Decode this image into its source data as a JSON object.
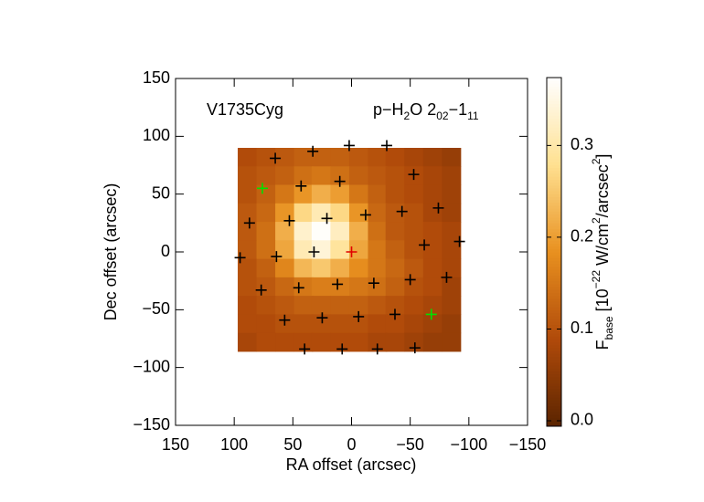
{
  "chart_data": {
    "type": "heatmap",
    "source_label": "V1735Cyg",
    "line_label": [
      {
        "t": "p−H"
      },
      {
        "t": "2",
        "s": "sub"
      },
      {
        "t": "O 2"
      },
      {
        "t": "02",
        "s": "sub"
      },
      {
        "t": "−1"
      },
      {
        "t": "11",
        "s": "sub"
      }
    ],
    "xlabel": "RA offset (arcsec)",
    "ylabel": "Dec offset (arcsec)",
    "xlim": [
      150,
      -150
    ],
    "ylim": [
      -150,
      150
    ],
    "xticks": [
      150,
      100,
      50,
      0,
      {
        "value": -50,
        "label": "−50"
      },
      {
        "value": -100,
        "label": "−100"
      },
      {
        "value": -150,
        "label": "−150"
      }
    ],
    "yticks": [
      {
        "value": -150,
        "label": "−150"
      },
      {
        "value": -100,
        "label": "−100"
      },
      {
        "value": -50,
        "label": "−50"
      },
      0,
      50,
      100,
      150
    ],
    "x": [
      89,
      73,
      57,
      41,
      26,
      10,
      -6,
      -22,
      -37,
      -53,
      -69,
      -85
    ],
    "y": [
      82,
      66,
      50,
      34,
      18,
      2,
      -14,
      -30,
      -46,
      -62,
      -78
    ],
    "z": [
      [
        0.09,
        0.1,
        0.11,
        0.12,
        0.12,
        0.12,
        0.11,
        0.1,
        0.09,
        0.08,
        0.07,
        0.06
      ],
      [
        0.1,
        0.11,
        0.12,
        0.14,
        0.15,
        0.14,
        0.12,
        0.11,
        0.1,
        0.09,
        0.08,
        0.07
      ],
      [
        0.1,
        0.12,
        0.15,
        0.19,
        0.22,
        0.2,
        0.15,
        0.12,
        0.1,
        0.09,
        0.08,
        0.07
      ],
      [
        0.11,
        0.13,
        0.19,
        0.27,
        0.31,
        0.27,
        0.19,
        0.13,
        0.11,
        0.1,
        0.08,
        0.07
      ],
      [
        0.11,
        0.14,
        0.22,
        0.33,
        0.37,
        0.32,
        0.22,
        0.14,
        0.11,
        0.1,
        0.09,
        0.08
      ],
      [
        0.11,
        0.14,
        0.21,
        0.31,
        0.34,
        0.29,
        0.21,
        0.15,
        0.12,
        0.1,
        0.09,
        0.08
      ],
      [
        0.1,
        0.12,
        0.17,
        0.23,
        0.25,
        0.22,
        0.18,
        0.15,
        0.13,
        0.11,
        0.09,
        0.08
      ],
      [
        0.1,
        0.11,
        0.13,
        0.15,
        0.16,
        0.16,
        0.15,
        0.14,
        0.12,
        0.1,
        0.09,
        0.07
      ],
      [
        0.09,
        0.1,
        0.11,
        0.12,
        0.12,
        0.12,
        0.12,
        0.11,
        0.1,
        0.09,
        0.08,
        0.07
      ],
      [
        0.09,
        0.09,
        0.1,
        0.1,
        0.1,
        0.1,
        0.1,
        0.09,
        0.09,
        0.08,
        0.07,
        0.06
      ],
      [
        0.08,
        0.09,
        0.09,
        0.09,
        0.09,
        0.09,
        0.09,
        0.08,
        0.08,
        0.07,
        0.06,
        0.06
      ]
    ],
    "colormap": [
      "#5a2400",
      "#b04a0a",
      "#e8901f",
      "#ffe090",
      "#ffffff"
    ],
    "clim": [
      -0.006,
      0.374
    ],
    "cticks": [
      {
        "value": 0,
        "label": "0.0"
      },
      0.1,
      0.2,
      0.3
    ],
    "clabel": [
      {
        "t": "F"
      },
      {
        "t": "base",
        "s": "sub"
      },
      {
        "t": " [10"
      },
      {
        "t": "−22",
        "s": "sup"
      },
      {
        "t": " W/cm"
      },
      {
        "t": "2",
        "s": "sup"
      },
      {
        "t": "/arcsec"
      },
      {
        "t": "2",
        "s": "sup"
      },
      {
        "t": "]"
      }
    ],
    "markers": [
      {
        "color": "#000000",
        "x": [
          65,
          33,
          2,
          -30,
          -53,
          43,
          10,
          21,
          -12,
          -43,
          -74,
          87,
          53,
          64,
          32,
          -62,
          -92,
          95,
          77,
          45,
          12,
          -19,
          -50,
          -81,
          57,
          25,
          -6,
          -37,
          40,
          8,
          -22,
          -54
        ],
        "y": [
          81,
          87,
          92,
          92,
          67,
          57,
          61,
          29,
          32,
          35,
          38,
          25,
          27,
          -4,
          0,
          6,
          9,
          -5,
          -33,
          -31,
          -28,
          -27,
          -24,
          -22,
          -59,
          -57,
          -56,
          -54,
          -84,
          -84,
          -84,
          -83
        ]
      },
      {
        "color": "#00e000",
        "x": [
          76,
          -68
        ],
        "y": [
          55,
          -54
        ]
      },
      {
        "color": "#e00000",
        "x": [
          0
        ],
        "y": [
          0
        ]
      }
    ]
  }
}
